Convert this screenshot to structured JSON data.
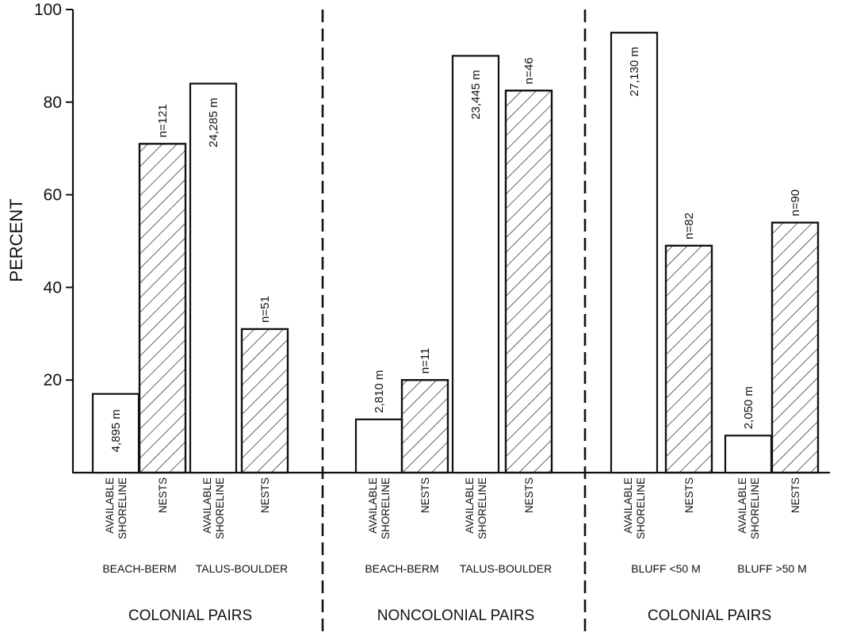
{
  "chart_data": {
    "type": "bar",
    "ylabel": "PERCENT",
    "ylim": [
      0,
      100
    ],
    "yticks": [
      20,
      40,
      60,
      80,
      100
    ],
    "series_styles": {
      "available": "open",
      "nests": "hatched"
    },
    "bar_order": [
      "AVAILABLE SHORELINE",
      "NESTS",
      "AVAILABLE SHORELINE",
      "NESTS",
      "AVAILABLE SHORELINE",
      "NESTS",
      "AVAILABLE SHORELINE",
      "NESTS",
      "AVAILABLE SHORELINE",
      "NESTS",
      "AVAILABLE SHORELINE",
      "NESTS"
    ],
    "groups": [
      {
        "label": "COLONIAL PAIRS",
        "habitats": [
          {
            "name": "BEACH-BERM",
            "available": 17,
            "available_label": "4,895 m",
            "nests": 71,
            "nests_label": "n=121"
          },
          {
            "name": "TALUS-BOULDER",
            "available": 84,
            "available_label": "24,285 m",
            "nests": 31,
            "nests_label": "n=51"
          }
        ]
      },
      {
        "label": "NONCOLONIAL PAIRS",
        "habitats": [
          {
            "name": "BEACH-BERM",
            "available": 11.5,
            "available_label": "2,810 m",
            "nests": 20,
            "nests_label": "n=11"
          },
          {
            "name": "TALUS-BOULDER",
            "available": 90,
            "available_label": "23,445 m",
            "nests": 82.5,
            "nests_label": "n=46"
          }
        ]
      },
      {
        "label": "COLONIAL PAIRS",
        "habitats": [
          {
            "name": "BLUFF <50 M",
            "available": 95,
            "available_label": "27,130 m",
            "nests": 49,
            "nests_label": "n=82"
          },
          {
            "name": "BLUFF >50 M",
            "available": 8,
            "available_label": "2,050 m",
            "nests": 54,
            "nests_label": "n=90"
          }
        ]
      }
    ]
  }
}
